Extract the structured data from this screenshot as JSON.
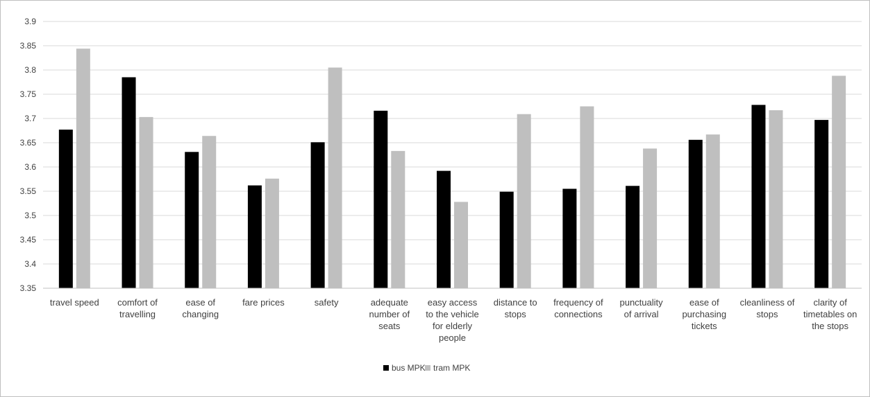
{
  "chart_data": {
    "type": "bar",
    "title": "",
    "xlabel": "",
    "ylabel": "",
    "ylim": [
      3.35,
      3.9
    ],
    "y_ticks": [
      "3.35",
      "3.4",
      "3.45",
      "3.5",
      "3.55",
      "3.6",
      "3.65",
      "3.7",
      "3.75",
      "3.8",
      "3.85",
      "3.9"
    ],
    "grid": true,
    "legend": "bottom",
    "categories": [
      "travel speed",
      "comfort of travelling",
      "ease of changing",
      "fare prices",
      "safety",
      "adequate number of seats",
      "easy access to the vehicle for elderly people",
      "distance to stops",
      "frequency of connections",
      "punctuality of arrival",
      "ease of purchasing tickets",
      "cleanliness of stops",
      "clarity of timetables on the stops"
    ],
    "category_lines": [
      [
        "travel speed"
      ],
      [
        "comfort of",
        "travelling"
      ],
      [
        "ease of",
        "changing"
      ],
      [
        "fare prices"
      ],
      [
        "safety"
      ],
      [
        "adequate",
        "number of",
        "seats"
      ],
      [
        "easy access",
        "to the vehicle",
        "for elderly",
        "people"
      ],
      [
        "distance to",
        "stops"
      ],
      [
        "frequency of",
        "connections"
      ],
      [
        "punctuality",
        "of arrival"
      ],
      [
        "ease of",
        "purchasing",
        "tickets"
      ],
      [
        "cleanliness of",
        "stops"
      ],
      [
        "clarity of",
        "timetables on",
        "the stops"
      ]
    ],
    "series": [
      {
        "name": "bus MPK",
        "color": "#000000",
        "values": [
          3.677,
          3.785,
          3.631,
          3.562,
          3.651,
          3.716,
          3.592,
          3.549,
          3.555,
          3.561,
          3.656,
          3.728,
          3.697
        ]
      },
      {
        "name": "tram MPK",
        "color": "#bfbfbf",
        "values": [
          3.844,
          3.703,
          3.664,
          3.576,
          3.805,
          3.633,
          3.528,
          3.709,
          3.725,
          3.638,
          3.667,
          3.717,
          3.788
        ]
      }
    ]
  }
}
